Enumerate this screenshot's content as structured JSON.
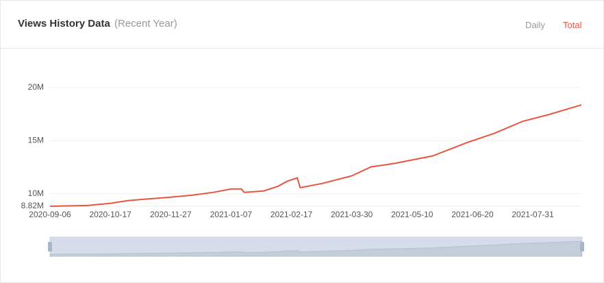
{
  "header": {
    "title": "Views History Data",
    "subtitle": "(Recent Year)",
    "tabs": [
      "Daily",
      "Total"
    ],
    "active_tab": 1
  },
  "chart_data": {
    "type": "line",
    "x": [
      "2020-09-06",
      "2020-10-02",
      "2020-10-17",
      "2020-10-29",
      "2020-11-09",
      "2020-11-27",
      "2020-12-12",
      "2020-12-26",
      "2021-01-07",
      "2021-01-14",
      "2021-01-16",
      "2021-01-29",
      "2021-02-08",
      "2021-02-14",
      "2021-02-21",
      "2021-02-23",
      "2021-03-10",
      "2021-03-30",
      "2021-04-12",
      "2021-04-28",
      "2021-05-24",
      "2021-06-16",
      "2021-07-05",
      "2021-07-24",
      "2021-08-11",
      "2021-09-02"
    ],
    "series": [
      {
        "name": "Total",
        "color": "#e8553f",
        "values": [
          8820000,
          8900000,
          9090000,
          9350000,
          9480000,
          9680000,
          9870000,
          10130000,
          10450000,
          10450000,
          10130000,
          10260000,
          10710000,
          11170000,
          11490000,
          10580000,
          10970000,
          11690000,
          12530000,
          12860000,
          13570000,
          14810000,
          15710000,
          16820000,
          17470000,
          18380000
        ]
      }
    ],
    "xlim": [
      "2020-09-06",
      "2021-09-02"
    ],
    "xticks": [
      "2020-09-06",
      "2020-10-17",
      "2020-11-27",
      "2021-01-07",
      "2021-02-17",
      "2021-03-30",
      "2021-05-10",
      "2021-06-20",
      "2021-07-31"
    ],
    "ylim": [
      8820000,
      20000000
    ],
    "yticks": [
      {
        "value": 8820000,
        "label": "8.82M"
      },
      {
        "value": 10000000,
        "label": "10M"
      },
      {
        "value": 15000000,
        "label": "15M"
      },
      {
        "value": 20000000,
        "label": "20M"
      }
    ],
    "grid": true
  }
}
